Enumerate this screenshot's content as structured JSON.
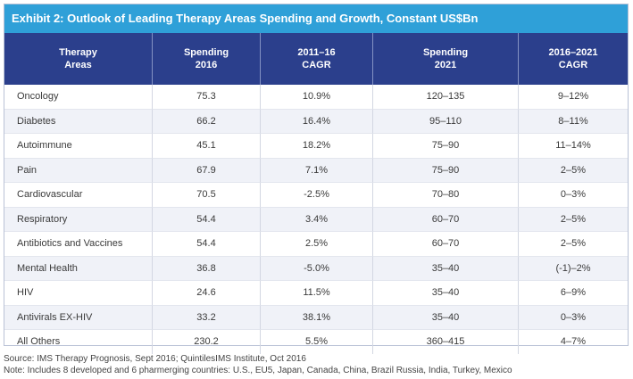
{
  "title": "Exhibit 2: Outlook of Leading Therapy Areas Spending and Growth, Constant US$Bn",
  "columns": [
    [
      "Therapy",
      "Areas"
    ],
    [
      "Spending",
      "2016"
    ],
    [
      "2011–16",
      "CAGR"
    ],
    [
      "Spending",
      "2021"
    ],
    [
      "2016–2021",
      "CAGR"
    ]
  ],
  "rows": [
    [
      "Oncology",
      "75.3",
      "10.9%",
      "120–135",
      "9–12%"
    ],
    [
      "Diabetes",
      "66.2",
      "16.4%",
      "95–110",
      "8–11%"
    ],
    [
      "Autoimmune",
      "45.1",
      "18.2%",
      "75–90",
      "11–14%"
    ],
    [
      "Pain",
      "67.9",
      "7.1%",
      "75–90",
      "2–5%"
    ],
    [
      "Cardiovascular",
      "70.5",
      "-2.5%",
      "70–80",
      "0–3%"
    ],
    [
      "Respiratory",
      "54.4",
      "3.4%",
      "60–70",
      "2–5%"
    ],
    [
      "Antibiotics and Vaccines",
      "54.4",
      "2.5%",
      "60–70",
      "2–5%"
    ],
    [
      "Mental Health",
      "36.8",
      "-5.0%",
      "35–40",
      "(-1)–2%"
    ],
    [
      "HIV",
      "24.6",
      "11.5%",
      "35–40",
      "6–9%"
    ],
    [
      "Antivirals EX-HIV",
      "33.2",
      "38.1%",
      "35–40",
      "0–3%"
    ],
    [
      "All Others",
      "230.2",
      "5.5%",
      "360–415",
      "4–7%"
    ]
  ],
  "source": "Source: IMS Therapy Prognosis, Sept 2016; QuintilesIMS Institute, Oct 2016",
  "note": "Note: Includes 8 developed and 6 pharmerging countries: U.S., EU5, Japan, Canada, China, Brazil Russia, India, Turkey, Mexico",
  "colors": {
    "title_bar": "#2fa0d8",
    "header_row": "#2b3f8c",
    "stripe": "#f0f2f8"
  }
}
